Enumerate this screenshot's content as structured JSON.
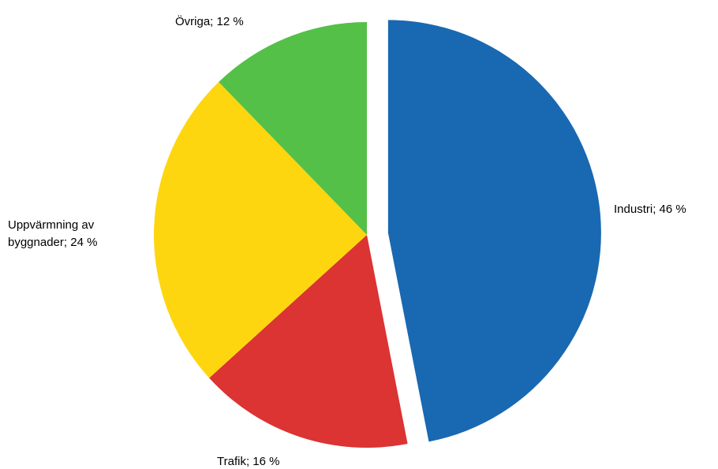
{
  "chart_data": {
    "type": "pie",
    "exploded": [
      "Industri"
    ],
    "slices": [
      {
        "label": "Industri",
        "value": 46,
        "text": "Industri; 46 %",
        "color": "#1968B2"
      },
      {
        "label": "Trafik",
        "value": 16,
        "text": "Trafik; 16 %",
        "color": "#DC3333"
      },
      {
        "label": "Uppvärmning av byggnader",
        "value": 24,
        "text_lines": [
          "Uppvärmning  av",
          "byggnader; 24 %"
        ],
        "color": "#FDD60F"
      },
      {
        "label": "Övriga",
        "value": 12,
        "text": "Övriga; 12 %",
        "color": "#54C047"
      }
    ]
  }
}
